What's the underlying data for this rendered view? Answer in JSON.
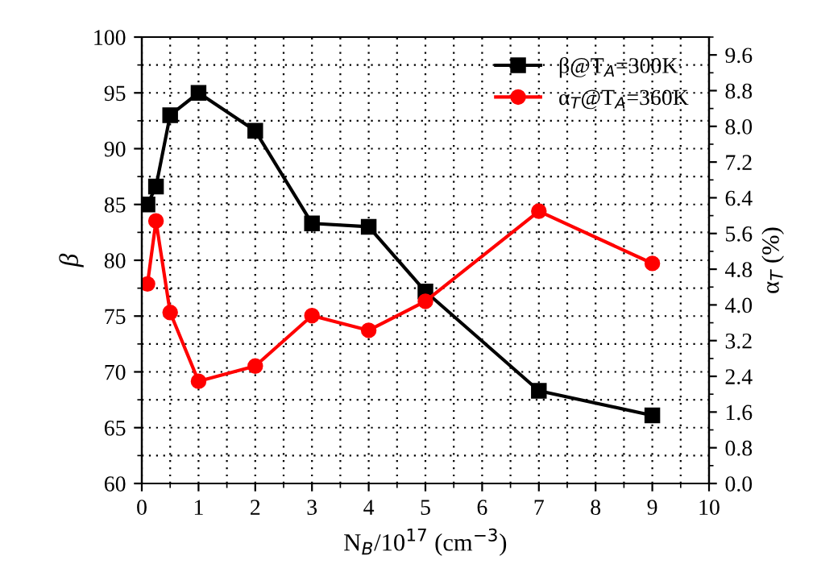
{
  "chart_data": {
    "type": "line",
    "xlabel": "N$_{B}$/10$^{17}$ (cm$^{−3}$)",
    "ylabel": "β",
    "y2label": "α$_{T}$ (%)",
    "x": [
      0.1,
      0.25,
      0.5,
      1,
      2,
      3,
      4,
      5,
      7,
      9
    ],
    "series": [
      {
        "name": "β@T$_{A}$=300K",
        "color": "#000000",
        "marker": "square",
        "values": [
          85,
          86.6,
          93,
          95,
          91.6,
          83.3,
          83,
          77.2,
          68.3,
          66.1
        ]
      },
      {
        "name": "α$_{T}$@T$_{A}$=360K",
        "color": "#ff0000",
        "marker": "circle",
        "axis": "y2",
        "values": [
          4.47,
          5.88,
          3.83,
          2.29,
          2.63,
          3.76,
          3.43,
          4.08,
          6.1,
          4.93
        ]
      }
    ],
    "xlim": [
      0,
      10
    ],
    "xticks": [
      0,
      1,
      2,
      3,
      4,
      5,
      6,
      7,
      8,
      9,
      10
    ],
    "ylim": [
      60,
      100
    ],
    "yticks": [
      60,
      65,
      70,
      75,
      80,
      85,
      90,
      95,
      100
    ],
    "y2lim": [
      0,
      10
    ],
    "y2ticks": [
      {
        "value": 0,
        "label": "0.0"
      },
      {
        "value": 0.8,
        "label": "0.8"
      },
      {
        "value": 1.6,
        "label": "1.6"
      },
      {
        "value": 2.4,
        "label": "2.4"
      },
      {
        "value": 3.2,
        "label": "3.2"
      },
      {
        "value": 4.0,
        "label": "4.0"
      },
      {
        "value": 4.8,
        "label": "4.8"
      },
      {
        "value": 5.6,
        "label": "5.6"
      },
      {
        "value": 6.4,
        "label": "6.4"
      },
      {
        "value": 7.2,
        "label": "7.2"
      },
      {
        "value": 8.0,
        "label": "8.0"
      },
      {
        "value": 8.8,
        "label": "8.8"
      },
      {
        "value": 9.6,
        "label": "9.6"
      }
    ],
    "grid": true,
    "legend": "top right",
    "line_style": "solid"
  }
}
